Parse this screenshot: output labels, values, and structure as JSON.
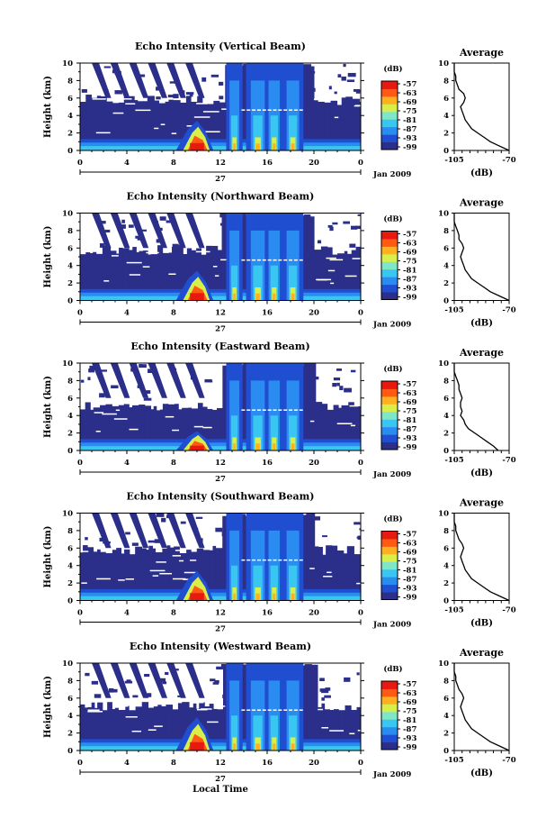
{
  "chart_data": {
    "type": "heatmap",
    "panels": [
      {
        "title": "Echo Intensity (Vertical Beam)",
        "profile": [
          -70,
          -76,
          -82,
          -86,
          -90,
          -94,
          -96,
          -98,
          -99,
          -100,
          -101,
          -99,
          -98,
          -99,
          -102,
          -103,
          -104,
          -104,
          -105,
          -105,
          -105
        ]
      },
      {
        "title": "Echo Intensity (Northward Beam)",
        "profile": [
          -70,
          -76,
          -82,
          -86,
          -90,
          -94,
          -96,
          -98,
          -99,
          -100,
          -101,
          -100,
          -99,
          -100,
          -102,
          -102,
          -103,
          -104,
          -105,
          -105,
          -105
        ]
      },
      {
        "title": "Echo Intensity (Eastward Beam)",
        "profile": [
          -77,
          -80,
          -84,
          -88,
          -92,
          -96,
          -98,
          -99,
          -101,
          -100,
          -101,
          -101,
          -100,
          -101,
          -102,
          -102,
          -103,
          -104,
          -105,
          -105,
          -105
        ]
      },
      {
        "title": "Echo Intensity (Southward Beam)",
        "profile": [
          -70,
          -76,
          -82,
          -86,
          -90,
          -94,
          -96,
          -98,
          -99,
          -100,
          -101,
          -100,
          -99,
          -100,
          -102,
          -103,
          -104,
          -104,
          -105,
          -105,
          -105
        ]
      },
      {
        "title": "Echo Intensity (Westward Beam)",
        "profile": [
          -70,
          -76,
          -82,
          -86,
          -90,
          -94,
          -96,
          -98,
          -99,
          -100,
          -101,
          -100,
          -99,
          -100,
          -102,
          -103,
          -104,
          -104,
          -105,
          -105,
          -105
        ]
      }
    ],
    "profile_heights_km": [
      0,
      0.5,
      1,
      1.5,
      2,
      2.5,
      3,
      3.5,
      4,
      4.5,
      5,
      5.5,
      6,
      6.5,
      7,
      7.5,
      8,
      8.5,
      9,
      9.5,
      10
    ],
    "x_ticks": [
      "0",
      "4",
      "8",
      "12",
      "16",
      "20",
      "0"
    ],
    "xlim": [
      0,
      24
    ],
    "y_ticks": [
      "0",
      "2",
      "4",
      "6",
      "8",
      "10"
    ],
    "ylim": [
      0,
      10
    ],
    "ylabel": "Height (km)",
    "xlabel": "Local Time",
    "date_day": "27",
    "date_month": "Jan 2009",
    "colorbar_label": "(dB)",
    "colorbar_ticks": [
      "-57",
      "-63",
      "-69",
      "-75",
      "-81",
      "-87",
      "-93",
      "-99"
    ],
    "colorbar_range": [
      -99,
      -57
    ],
    "profile_title": "Average",
    "profile_xticks": [
      "-105",
      "-70"
    ],
    "profile_xlabel": "(dB)",
    "profile_xlim": [
      -105,
      -70
    ],
    "colors": [
      "#2b2f8a",
      "#1f4fd0",
      "#2a8cf0",
      "#39c6f0",
      "#7fe6c8",
      "#d8ee4a",
      "#ffb020",
      "#ff5a14",
      "#e81a10"
    ]
  }
}
